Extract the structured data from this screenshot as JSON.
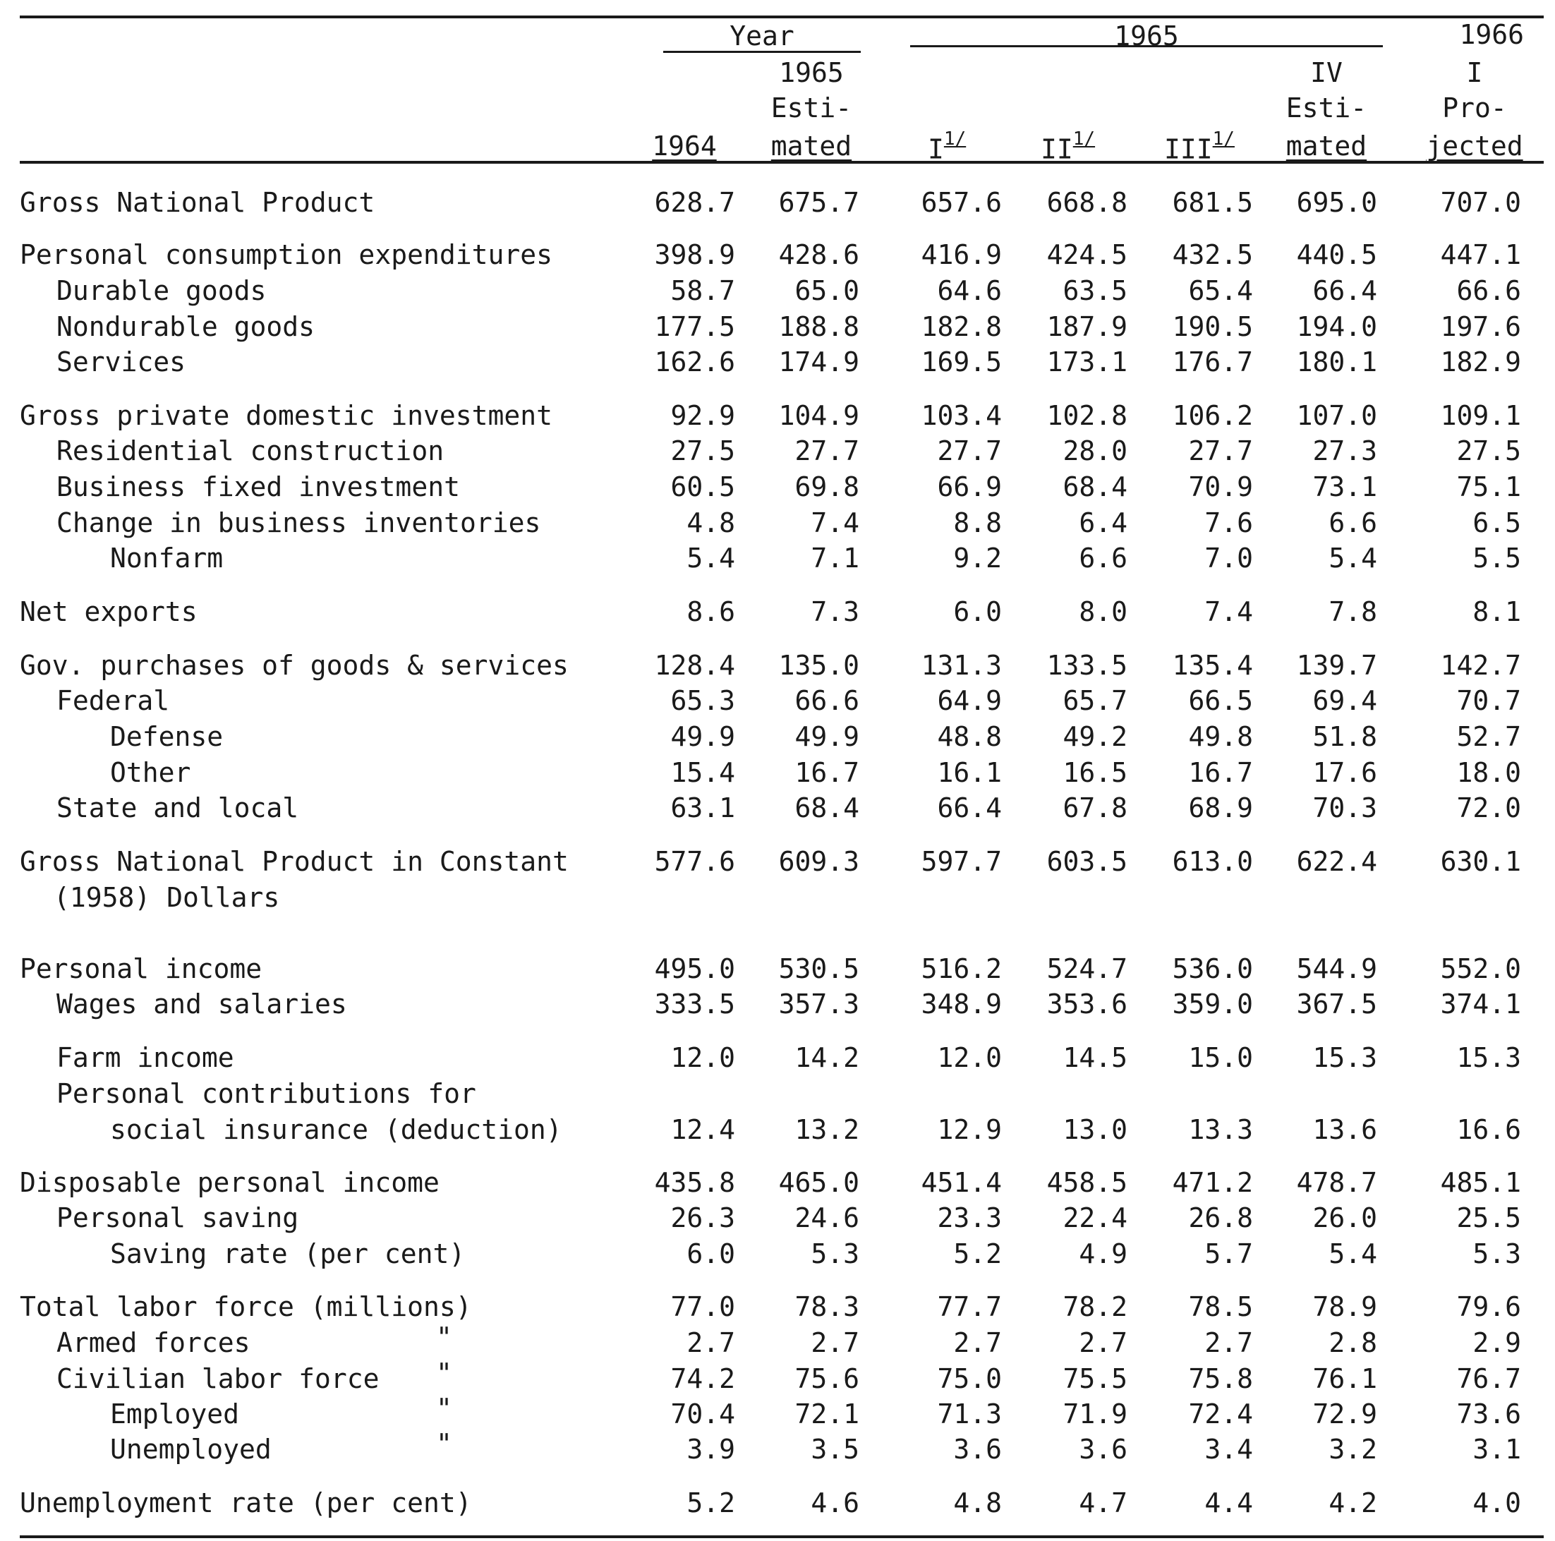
{
  "header": {
    "group_year": "Year",
    "group_1965": "1965",
    "col_1966_top": "1966",
    "col_1965_est": [
      "1965",
      "Esti-",
      "mated"
    ],
    "col_iv_est": [
      "IV",
      "Esti-",
      "mated"
    ],
    "col_1966_q": [
      "I",
      "Pro-",
      "jected"
    ],
    "col_1964": "1964",
    "q1": "I",
    "q2": "II",
    "q3": "III",
    "footnote_mark": "1/"
  },
  "rows": [
    {
      "label": "Gross National Product",
      "indent": 0,
      "values": [
        "628.7",
        "675.7",
        "657.6",
        "668.8",
        "681.5",
        "695.0",
        "707.0"
      ]
    },
    {
      "label": "Personal consumption expenditures",
      "indent": 0,
      "values": [
        "398.9",
        "428.6",
        "416.9",
        "424.5",
        "432.5",
        "440.5",
        "447.1"
      ]
    },
    {
      "label": "Durable goods",
      "indent": 1,
      "values": [
        "58.7",
        "65.0",
        "64.6",
        "63.5",
        "65.4",
        "66.4",
        "66.6"
      ]
    },
    {
      "label": "Nondurable goods",
      "indent": 1,
      "values": [
        "177.5",
        "188.8",
        "182.8",
        "187.9",
        "190.5",
        "194.0",
        "197.6"
      ]
    },
    {
      "label": "Services",
      "indent": 1,
      "values": [
        "162.6",
        "174.9",
        "169.5",
        "173.1",
        "176.7",
        "180.1",
        "182.9"
      ]
    },
    {
      "label": "Gross private domestic investment",
      "indent": 0,
      "values": [
        "92.9",
        "104.9",
        "103.4",
        "102.8",
        "106.2",
        "107.0",
        "109.1"
      ]
    },
    {
      "label": "Residential construction",
      "indent": 1,
      "values": [
        "27.5",
        "27.7",
        "27.7",
        "28.0",
        "27.7",
        "27.3",
        "27.5"
      ]
    },
    {
      "label": "Business fixed investment",
      "indent": 1,
      "values": [
        "60.5",
        "69.8",
        "66.9",
        "68.4",
        "70.9",
        "73.1",
        "75.1"
      ]
    },
    {
      "label": "Change in business inventories",
      "indent": 1,
      "values": [
        "4.8",
        "7.4",
        "8.8",
        "6.4",
        "7.6",
        "6.6",
        "6.5"
      ]
    },
    {
      "label": "Nonfarm",
      "indent": 2,
      "values": [
        "5.4",
        "7.1",
        "9.2",
        "6.6",
        "7.0",
        "5.4",
        "5.5"
      ]
    },
    {
      "label": "Net exports",
      "indent": 0,
      "values": [
        "8.6",
        "7.3",
        "6.0",
        "8.0",
        "7.4",
        "7.8",
        "8.1"
      ]
    },
    {
      "label": "Gov. purchases of goods & services",
      "indent": 0,
      "values": [
        "128.4",
        "135.0",
        "131.3",
        "133.5",
        "135.4",
        "139.7",
        "142.7"
      ]
    },
    {
      "label": "Federal",
      "indent": 1,
      "values": [
        "65.3",
        "66.6",
        "64.9",
        "65.7",
        "66.5",
        "69.4",
        "70.7"
      ]
    },
    {
      "label": "Defense",
      "indent": 2,
      "values": [
        "49.9",
        "49.9",
        "48.8",
        "49.2",
        "49.8",
        "51.8",
        "52.7"
      ]
    },
    {
      "label": "Other",
      "indent": 2,
      "values": [
        "15.4",
        "16.7",
        "16.1",
        "16.5",
        "16.7",
        "17.6",
        "18.0"
      ]
    },
    {
      "label": "State and local",
      "indent": 1,
      "values": [
        "63.1",
        "68.4",
        "66.4",
        "67.8",
        "68.9",
        "70.3",
        "72.0"
      ]
    },
    {
      "label": "Gross National Product in Constant",
      "label2": "(1958) Dollars",
      "indent": 0,
      "values": [
        "577.6",
        "609.3",
        "597.7",
        "603.5",
        "613.0",
        "622.4",
        "630.1"
      ]
    },
    {
      "label": "Personal income",
      "indent": 0,
      "values": [
        "495.0",
        "530.5",
        "516.2",
        "524.7",
        "536.0",
        "544.9",
        "552.0"
      ]
    },
    {
      "label": "Wages and salaries",
      "indent": 1,
      "values": [
        "333.5",
        "357.3",
        "348.9",
        "353.6",
        "359.0",
        "367.5",
        "374.1"
      ]
    },
    {
      "label": "Farm income",
      "indent": 1,
      "values": [
        "12.0",
        "14.2",
        "12.0",
        "14.5",
        "15.0",
        "15.3",
        "15.3"
      ]
    },
    {
      "label": "Personal contributions for",
      "label2": "social insurance (deduction)",
      "indent": 1,
      "values": [
        "12.4",
        "13.2",
        "12.9",
        "13.0",
        "13.3",
        "13.6",
        "16.6"
      ]
    },
    {
      "label": "Disposable personal income",
      "indent": 0,
      "values": [
        "435.8",
        "465.0",
        "451.4",
        "458.5",
        "471.2",
        "478.7",
        "485.1"
      ]
    },
    {
      "label": "Personal saving",
      "indent": 1,
      "values": [
        "26.3",
        "24.6",
        "23.3",
        "22.4",
        "26.8",
        "26.0",
        "25.5"
      ]
    },
    {
      "label": "Saving rate (per cent)",
      "indent": 2,
      "values": [
        "6.0",
        "5.3",
        "5.2",
        "4.9",
        "5.7",
        "5.4",
        "5.3"
      ]
    },
    {
      "label": "Total labor force (millions)",
      "indent": 0,
      "values": [
        "77.0",
        "78.3",
        "77.7",
        "78.2",
        "78.5",
        "78.9",
        "79.6"
      ]
    },
    {
      "label": "Armed forces",
      "ditto": "\"",
      "indent": 1,
      "values": [
        "2.7",
        "2.7",
        "2.7",
        "2.7",
        "2.7",
        "2.8",
        "2.9"
      ]
    },
    {
      "label": "Civilian labor force",
      "ditto": "\"",
      "indent": 1,
      "values": [
        "74.2",
        "75.6",
        "75.0",
        "75.5",
        "75.8",
        "76.1",
        "76.7"
      ]
    },
    {
      "label": "Employed",
      "ditto": "\"",
      "indent": 2,
      "values": [
        "70.4",
        "72.1",
        "71.3",
        "71.9",
        "72.4",
        "72.9",
        "73.6"
      ]
    },
    {
      "label": "Unemployed",
      "ditto": "\"",
      "indent": 2,
      "values": [
        "3.9",
        "3.5",
        "3.6",
        "3.6",
        "3.4",
        "3.2",
        "3.1"
      ]
    },
    {
      "label": "Unemployment rate (per cent)",
      "indent": 0,
      "values": [
        "5.2",
        "4.6",
        "4.8",
        "4.7",
        "4.4",
        "4.2",
        "4.0"
      ]
    }
  ]
}
